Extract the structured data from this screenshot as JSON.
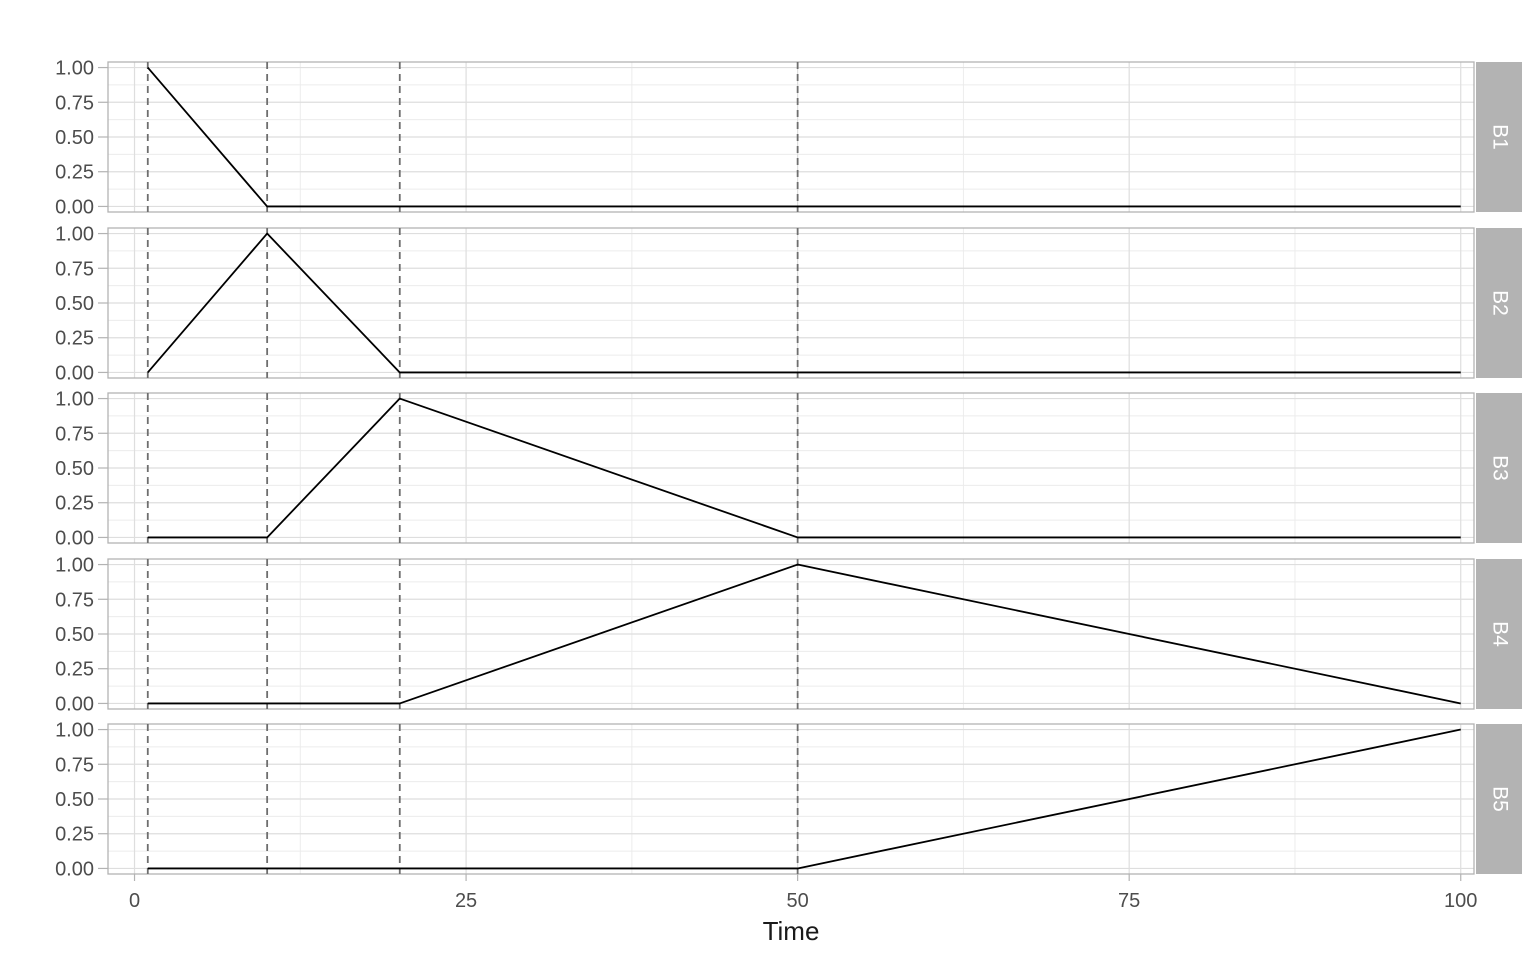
{
  "chart_data": {
    "type": "line",
    "xlabel": "Time",
    "xlim": [
      -2,
      101
    ],
    "x_ticks": [
      0,
      25,
      50,
      75,
      100
    ],
    "y_ticks": [
      0,
      0.25,
      0.5,
      0.75,
      1
    ],
    "y_tick_labels": [
      "0.00",
      "0.25",
      "0.50",
      "0.75",
      "1.00"
    ],
    "ylim": [
      -0.04,
      1.04
    ],
    "vlines": [
      1,
      10,
      20,
      50
    ],
    "line_color": "#000000",
    "vline_color": "#6e6e6e",
    "strip_color": "#b3b3b3",
    "grid": true,
    "panels": [
      {
        "label": "B1",
        "x": [
          1,
          10,
          20,
          50,
          100
        ],
        "y": [
          1,
          0,
          0,
          0,
          0
        ]
      },
      {
        "label": "B2",
        "x": [
          1,
          10,
          20,
          50,
          100
        ],
        "y": [
          0,
          1,
          0,
          0,
          0
        ]
      },
      {
        "label": "B3",
        "x": [
          1,
          10,
          20,
          50,
          100
        ],
        "y": [
          0,
          0,
          1,
          0,
          0
        ]
      },
      {
        "label": "B4",
        "x": [
          1,
          10,
          20,
          50,
          100
        ],
        "y": [
          0,
          0,
          0,
          1,
          0
        ]
      },
      {
        "label": "B5",
        "x": [
          1,
          10,
          20,
          50,
          100
        ],
        "y": [
          0,
          0,
          0,
          0,
          1
        ]
      }
    ]
  }
}
